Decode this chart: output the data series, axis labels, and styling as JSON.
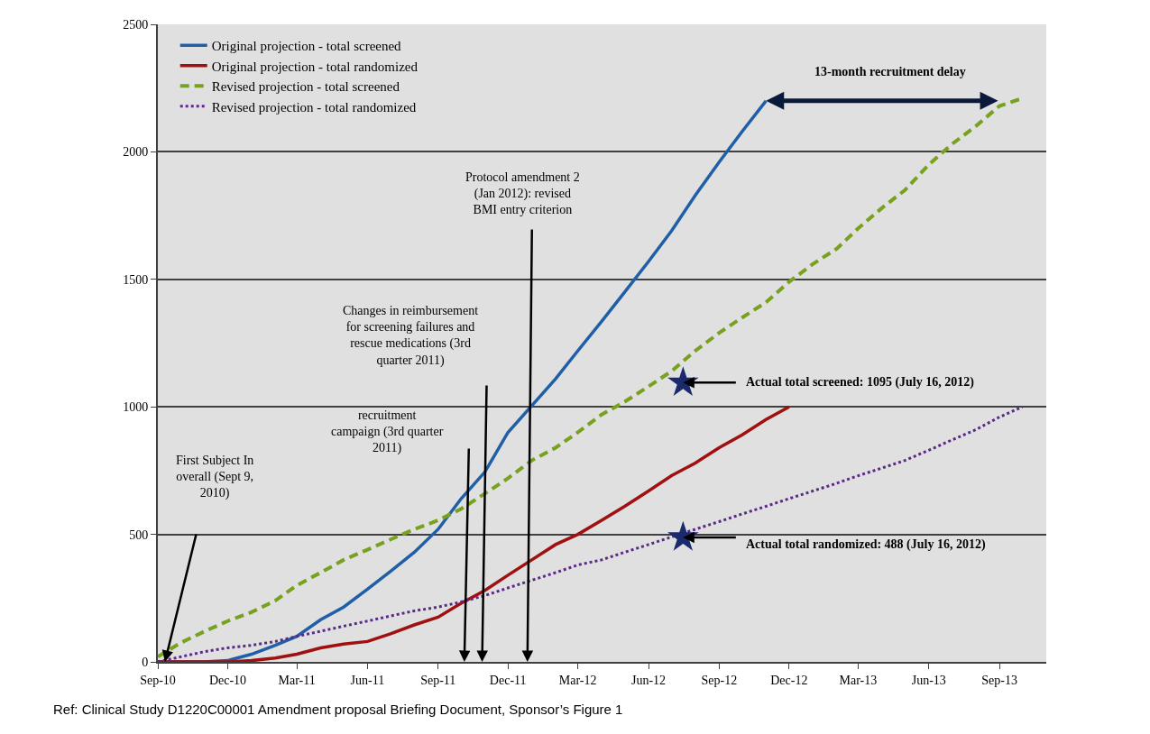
{
  "chart_data": {
    "type": "line",
    "x": [
      "2010-09",
      "2010-10",
      "2010-11",
      "2010-12",
      "2011-01",
      "2011-02",
      "2011-03",
      "2011-04",
      "2011-05",
      "2011-06",
      "2011-07",
      "2011-08",
      "2011-09",
      "2011-10",
      "2011-11",
      "2011-12",
      "2012-01",
      "2012-02",
      "2012-03",
      "2012-04",
      "2012-05",
      "2012-06",
      "2012-07",
      "2012-08",
      "2012-09",
      "2012-10",
      "2012-11",
      "2012-12",
      "2013-01",
      "2013-02",
      "2013-03",
      "2013-04",
      "2013-05",
      "2013-06",
      "2013-07",
      "2013-08",
      "2013-09",
      "2013-10"
    ],
    "series": [
      {
        "name": "Original projection - total screened",
        "color": "#1f5fa8",
        "line_style": "solid",
        "values": [
          0,
          0,
          0,
          5,
          30,
          65,
          100,
          165,
          215,
          285,
          355,
          430,
          520,
          640,
          745,
          900,
          1005,
          1110,
          1220,
          1335,
          1450,
          1570,
          1690,
          1830,
          1960,
          2080,
          2200,
          null,
          null,
          null,
          null,
          null,
          null,
          null,
          null,
          null,
          null,
          null
        ]
      },
      {
        "name": "Original projection - total randomized",
        "color": "#a01010",
        "line_style": "solid",
        "values": [
          0,
          0,
          0,
          0,
          5,
          15,
          30,
          55,
          70,
          80,
          110,
          145,
          175,
          230,
          280,
          340,
          400,
          460,
          500,
          555,
          610,
          670,
          730,
          780,
          840,
          890,
          950,
          1000,
          null,
          null,
          null,
          null,
          null,
          null,
          null,
          null,
          null,
          null
        ]
      },
      {
        "name": "Revised projection - total screened",
        "color": "#77a11e",
        "line_style": "dashed",
        "values": [
          20,
          75,
          120,
          160,
          195,
          240,
          300,
          350,
          400,
          440,
          480,
          520,
          555,
          600,
          660,
          720,
          790,
          840,
          900,
          970,
          1020,
          1080,
          1140,
          1220,
          1290,
          1350,
          1410,
          1490,
          1560,
          1620,
          1700,
          1780,
          1850,
          1950,
          2030,
          2100,
          2180,
          2210
        ]
      },
      {
        "name": "Revised projection - total randomized",
        "color": "#5b2a86",
        "line_style": "dotted",
        "values": [
          0,
          20,
          40,
          55,
          65,
          80,
          100,
          120,
          140,
          160,
          180,
          200,
          215,
          235,
          260,
          290,
          320,
          350,
          380,
          400,
          430,
          460,
          490,
          520,
          550,
          580,
          610,
          640,
          670,
          700,
          730,
          760,
          790,
          830,
          870,
          910,
          960,
          1000
        ]
      },
      {
        "type": "scatter",
        "marker": "star",
        "color": "#1a2a6c",
        "x": [
          "2012-07-16",
          "2012-07-16"
        ],
        "values": [
          1095,
          488
        ]
      }
    ],
    "annotations": [
      "First Subject In\noverall (Sept 9,\n2010)",
      "recruitment\ncampaign (3rd quarter\n2011)",
      "Changes in reimbursement\nfor screening failures and\nrescue medications (3rd\nquarter 2011)",
      "Protocol amendment 2\n(Jan 2012): revised\nBMI entry criterion",
      "13-month recruitment delay",
      {
        "text": "Actual total screened: 1095 (July 16, 2012)",
        "x": "2012-07-16",
        "y": 1095
      },
      {
        "text": "Actual total randomized: 488 (July 16, 2012)",
        "x": "2012-07-16",
        "y": 488
      },
      "Ref: Clinical Study D1220C00001 Amendment proposal Briefing Document, Sponsor’s Figure 1"
    ],
    "xlim": [
      "2010-09",
      "2013-11"
    ],
    "xticks": [
      {
        "value": "2010-09",
        "label": "Sep-10"
      },
      {
        "value": "2010-12",
        "label": "Dec-10"
      },
      {
        "value": "2011-03",
        "label": "Mar-11"
      },
      {
        "value": "2011-06",
        "label": "Jun-11"
      },
      {
        "value": "2011-09",
        "label": "Sep-11"
      },
      {
        "value": "2011-12",
        "label": "Dec-11"
      },
      {
        "value": "2012-03",
        "label": "Mar-12"
      },
      {
        "value": "2012-06",
        "label": "Jun-12"
      },
      {
        "value": "2012-09",
        "label": "Sep-12"
      },
      {
        "value": "2012-12",
        "label": "Dec-12"
      },
      {
        "value": "2013-03",
        "label": "Mar-13"
      },
      {
        "value": "2013-06",
        "label": "Jun-13"
      },
      {
        "value": "2013-09",
        "label": "Sep-13"
      }
    ],
    "ylim": [
      0,
      2500
    ],
    "yticks": [
      0,
      500,
      1000,
      1500,
      2000,
      2500
    ],
    "grid": "y",
    "legend": "top left",
    "marker": "none"
  }
}
